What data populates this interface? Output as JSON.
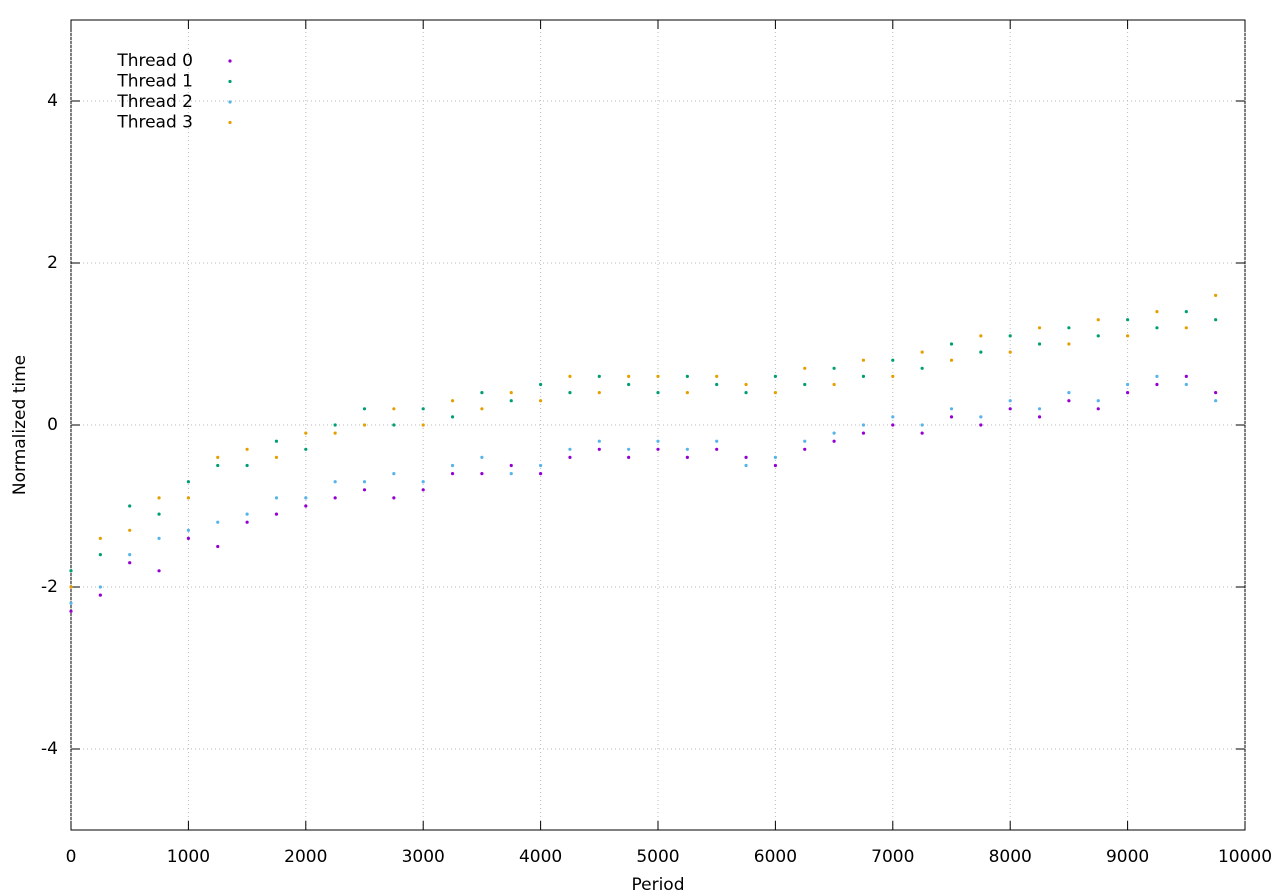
{
  "chart_data": {
    "type": "scatter",
    "xlabel": "Period",
    "ylabel": "Normalized time",
    "xlim": [
      0,
      10000
    ],
    "ylim": [
      -5,
      5
    ],
    "xticks": [
      0,
      1000,
      2000,
      3000,
      4000,
      5000,
      6000,
      7000,
      8000,
      9000,
      10000
    ],
    "yticks": [
      -4,
      -2,
      0,
      2,
      4
    ],
    "grid": true,
    "legend": "top-left",
    "x": [
      0,
      250,
      500,
      750,
      1000,
      1250,
      1500,
      1750,
      2000,
      2250,
      2500,
      2750,
      3000,
      3250,
      3500,
      3750,
      4000,
      4250,
      4500,
      4750,
      5000,
      5250,
      5500,
      5750,
      6000,
      6250,
      6500,
      6750,
      7000,
      7250,
      7500,
      7750,
      8000,
      8250,
      8500,
      8750,
      9000,
      9250,
      9500,
      9750
    ],
    "series": [
      {
        "name": "Thread 0",
        "color": "#9400d3",
        "values": [
          -2.3,
          -2.1,
          -1.7,
          -1.8,
          -1.4,
          -1.5,
          -1.2,
          -1.1,
          -1.0,
          -0.9,
          -0.8,
          -0.9,
          -0.8,
          -0.6,
          -0.6,
          -0.5,
          -0.6,
          -0.4,
          -0.3,
          -0.4,
          -0.3,
          -0.4,
          -0.3,
          -0.4,
          -0.5,
          -0.3,
          -0.2,
          -0.1,
          0.0,
          -0.1,
          0.1,
          0.0,
          0.2,
          0.1,
          0.3,
          0.2,
          0.4,
          0.5,
          0.6,
          0.4
        ]
      },
      {
        "name": "Thread 1",
        "color": "#009e73",
        "values": [
          -1.8,
          -1.6,
          -1.0,
          -1.1,
          -0.7,
          -0.5,
          -0.5,
          -0.2,
          -0.3,
          0.0,
          0.2,
          0.0,
          0.2,
          0.1,
          0.4,
          0.3,
          0.5,
          0.4,
          0.6,
          0.5,
          0.4,
          0.6,
          0.5,
          0.4,
          0.6,
          0.5,
          0.7,
          0.6,
          0.8,
          0.7,
          1.0,
          0.9,
          1.1,
          1.0,
          1.2,
          1.1,
          1.3,
          1.2,
          1.4,
          1.3
        ]
      },
      {
        "name": "Thread 2",
        "color": "#56b4e9",
        "values": [
          -2.2,
          -2.0,
          -1.6,
          -1.4,
          -1.3,
          -1.2,
          -1.1,
          -0.9,
          -0.9,
          -0.7,
          -0.7,
          -0.6,
          -0.7,
          -0.5,
          -0.4,
          -0.6,
          -0.5,
          -0.3,
          -0.2,
          -0.3,
          -0.2,
          -0.3,
          -0.2,
          -0.5,
          -0.4,
          -0.2,
          -0.1,
          0.0,
          0.1,
          0.0,
          0.2,
          0.1,
          0.3,
          0.2,
          0.4,
          0.3,
          0.5,
          0.6,
          0.5,
          0.3
        ]
      },
      {
        "name": "Thread 3",
        "color": "#e69f00",
        "values": [
          -2.0,
          -1.4,
          -1.3,
          -0.9,
          -0.9,
          -0.4,
          -0.3,
          -0.4,
          -0.1,
          -0.1,
          0.0,
          0.2,
          0.0,
          0.3,
          0.2,
          0.4,
          0.3,
          0.6,
          0.4,
          0.6,
          0.6,
          0.4,
          0.6,
          0.5,
          0.4,
          0.7,
          0.5,
          0.8,
          0.6,
          0.9,
          0.8,
          1.1,
          0.9,
          1.2,
          1.0,
          1.3,
          1.1,
          1.4,
          1.2,
          1.6
        ]
      }
    ]
  }
}
